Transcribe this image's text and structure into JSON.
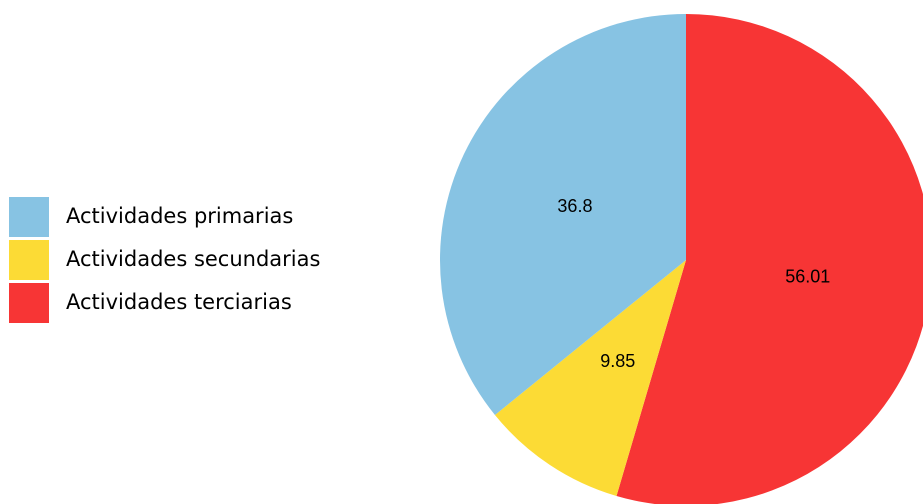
{
  "chart_data": {
    "type": "pie",
    "categories": [
      "Actividades primarias",
      "Actividades secundarias",
      "Actividades terciarias"
    ],
    "values": [
      36.8,
      9.85,
      56.01
    ],
    "colors": [
      "#87c3e3",
      "#fcdb35",
      "#f73535"
    ],
    "legend": "left"
  }
}
